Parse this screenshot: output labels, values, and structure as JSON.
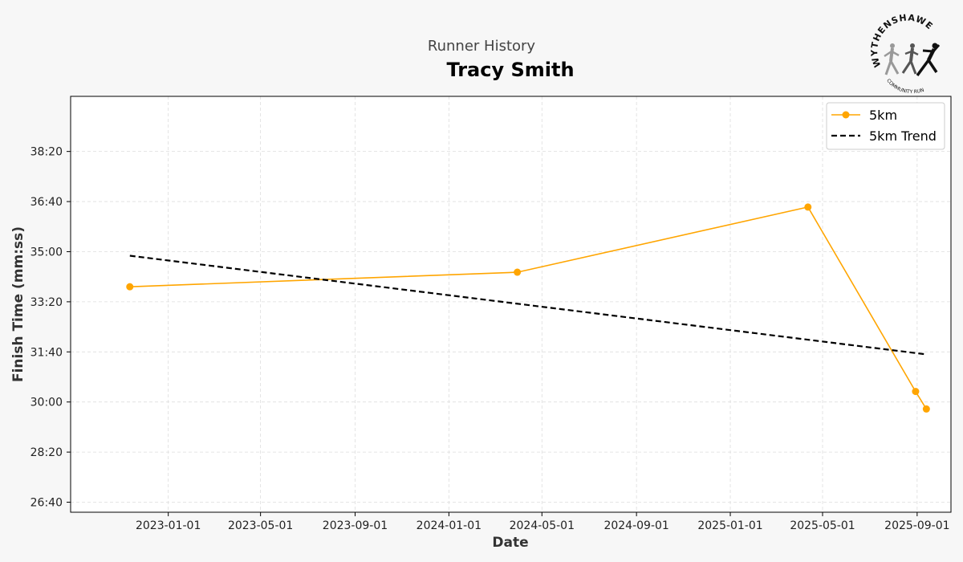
{
  "header": {
    "suptitle": "Runner History",
    "runner_name": "Tracy Smith"
  },
  "logo": {
    "name": "WYTHENSHAWE",
    "subtitle": "COMMUNITY RUN"
  },
  "chart_data": {
    "type": "line",
    "title": "Tracy Smith",
    "xlabel": "Date",
    "ylabel": "Finish Time (mm:ss)",
    "grid": true,
    "legend_position": "top-right",
    "xlim": [
      "2022-08-27",
      "2025-10-15"
    ],
    "ylim_seconds": [
      1580,
      2410
    ],
    "x_ticks": [
      "2023-01-01",
      "2023-05-01",
      "2023-09-01",
      "2024-01-01",
      "2024-05-01",
      "2024-09-01",
      "2025-01-01",
      "2025-05-01",
      "2025-09-01"
    ],
    "y_ticks": [
      "26:40",
      "28:20",
      "30:00",
      "31:40",
      "33:20",
      "35:00",
      "36:40",
      "38:20"
    ],
    "series": [
      {
        "name": "5km",
        "color": "#ffa500",
        "style": "solid",
        "marker": "circle",
        "points": [
          {
            "x": "2022-11-12",
            "y": "33:50"
          },
          {
            "x": "2024-03-30",
            "y": "34:19"
          },
          {
            "x": "2025-04-12",
            "y": "36:29"
          },
          {
            "x": "2025-08-30",
            "y": "30:21"
          },
          {
            "x": "2025-09-13",
            "y": "29:46"
          }
        ]
      },
      {
        "name": "5km Trend",
        "color": "#000000",
        "style": "dashed",
        "marker": "none",
        "points": [
          {
            "x": "2022-11-12",
            "y": "34:52"
          },
          {
            "x": "2025-09-13",
            "y": "31:35"
          }
        ]
      }
    ]
  }
}
